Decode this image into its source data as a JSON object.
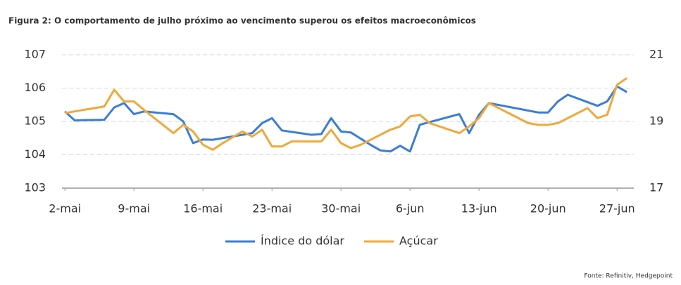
{
  "chart_data": {
    "type": "line",
    "title": "Figura 2: O comportamento de julho próximo ao vencimento superou os efeitos macroeconômicos",
    "source": "Fonte: Refinitiv, Hedgepoint",
    "xlim": [
      -0.3,
      57.7
    ],
    "xticks": [
      {
        "value": 0,
        "label": "2-mai"
      },
      {
        "value": 7,
        "label": "9-mai"
      },
      {
        "value": 14,
        "label": "16-mai"
      },
      {
        "value": 21,
        "label": "23-mai"
      },
      {
        "value": 28,
        "label": "30-mai"
      },
      {
        "value": 35,
        "label": "6-jun"
      },
      {
        "value": 42,
        "label": "13-jun"
      },
      {
        "value": 49,
        "label": "20-jun"
      },
      {
        "value": 56,
        "label": "27-jun"
      }
    ],
    "ylim": [
      103,
      107
    ],
    "yticks": [
      103,
      104,
      105,
      106,
      107
    ],
    "y2lim": [
      17,
      21
    ],
    "y2ticks": [
      17,
      19,
      21
    ],
    "grid": true,
    "series": [
      {
        "name": "Índice do dólar",
        "color": "#3b7dd8",
        "x": [
          0,
          1,
          2,
          4,
          5,
          6,
          7,
          8,
          11,
          12,
          13,
          14,
          15,
          18,
          19,
          20,
          21,
          22,
          25,
          26,
          27,
          28,
          29,
          31,
          32,
          33,
          34,
          35,
          36,
          40,
          41,
          42,
          43,
          48,
          49,
          50,
          51,
          54,
          55,
          56,
          57
        ],
        "values": [
          105.3,
          105.03,
          105.04,
          105.05,
          105.42,
          105.55,
          105.22,
          105.3,
          105.22,
          105.0,
          104.35,
          104.46,
          104.45,
          104.6,
          104.65,
          104.95,
          105.1,
          104.73,
          104.6,
          104.62,
          105.1,
          104.7,
          104.67,
          104.3,
          104.13,
          104.1,
          104.27,
          104.1,
          104.9,
          105.22,
          104.65,
          105.2,
          105.55,
          105.27,
          105.27,
          105.6,
          105.8,
          105.47,
          105.6,
          106.05,
          105.88
        ]
      },
      {
        "name": "Açúcar",
        "color": "#f0a83c",
        "axis": "y2",
        "x": [
          0,
          1,
          4,
          5,
          6,
          7,
          8,
          11,
          12,
          13,
          14,
          15,
          16,
          18,
          19,
          20,
          21,
          22,
          23,
          26,
          27,
          28,
          29,
          30,
          33,
          34,
          35,
          36,
          37,
          40,
          41,
          42,
          43,
          44,
          47,
          48,
          49,
          50,
          53,
          54,
          55,
          56,
          57
        ],
        "values": [
          19.25,
          19.3,
          19.45,
          19.95,
          19.6,
          19.6,
          19.35,
          18.65,
          18.9,
          18.7,
          18.3,
          18.15,
          18.35,
          18.7,
          18.55,
          18.75,
          18.25,
          18.25,
          18.4,
          18.4,
          18.75,
          18.35,
          18.2,
          18.3,
          18.75,
          18.85,
          19.15,
          19.2,
          18.95,
          18.65,
          18.85,
          19.1,
          19.55,
          19.4,
          18.95,
          18.9,
          18.9,
          18.95,
          19.4,
          19.1,
          19.2,
          20.1,
          20.3
        ]
      }
    ]
  }
}
